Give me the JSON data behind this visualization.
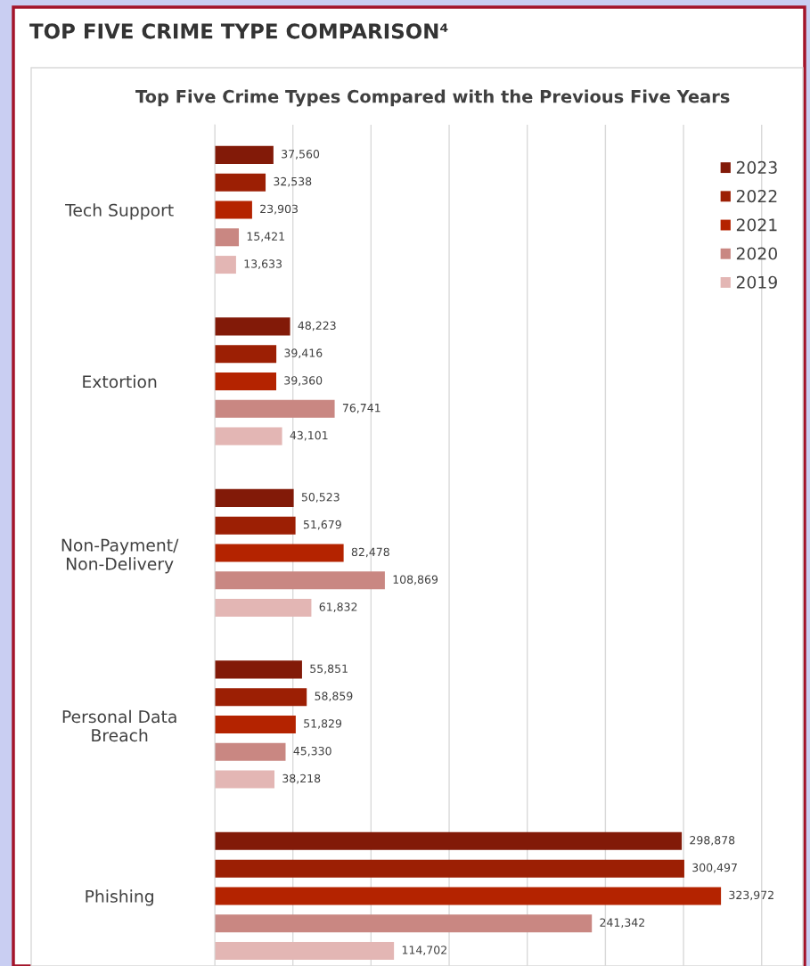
{
  "chart_data": {
    "type": "bar",
    "orientation": "horizontal",
    "title": "Top Five Crime Types Compared with the Previous Five Years",
    "annotations": [
      "TOP FIVE CRIME TYPE COMPARISON⁴"
    ],
    "categories": [
      "Tech Support",
      "Extortion",
      "Non-Payment/\nNon-Delivery",
      "Personal Data\nBreach",
      "Phishing"
    ],
    "series": [
      {
        "name": "2023",
        "color": "#821a08",
        "values": [
          37560,
          48223,
          50523,
          55851,
          298878
        ],
        "value_labels": [
          "37,560",
          "48,223",
          "50,523",
          "55,851",
          "298,878"
        ]
      },
      {
        "name": "2022",
        "color": "#9c1f04",
        "values": [
          32538,
          39416,
          51679,
          58859,
          300497
        ],
        "value_labels": [
          "32,538",
          "39,416",
          "51,679",
          "58,859",
          "300,497"
        ]
      },
      {
        "name": "2021",
        "color": "#b42300",
        "values": [
          23903,
          39360,
          82478,
          51829,
          323972
        ],
        "value_labels": [
          "23,903",
          "39,360",
          "82,478",
          "51,829",
          "323,972"
        ]
      },
      {
        "name": "2020",
        "color": "#c98782",
        "values": [
          15421,
          76741,
          108869,
          45330,
          241342
        ],
        "value_labels": [
          "15,421",
          "76,741",
          "108,869",
          "45,330",
          "241,342"
        ]
      },
      {
        "name": "2019",
        "color": "#e3b6b4",
        "values": [
          13633,
          43101,
          61832,
          38218,
          114702
        ],
        "value_labels": [
          "13,633",
          "43,101",
          "61,832",
          "38,218",
          "114,702"
        ]
      }
    ],
    "tick_labels": "y",
    "grid": "x",
    "legend": "top right"
  }
}
